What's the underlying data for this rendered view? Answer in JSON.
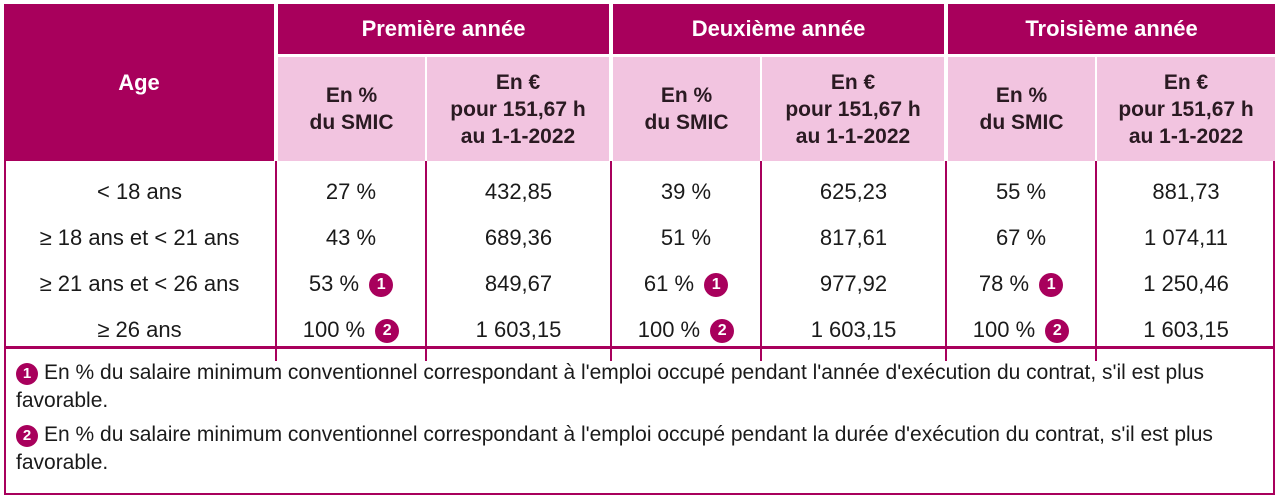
{
  "header": {
    "age": "Age",
    "years": [
      "Première année",
      "Deuxième année",
      "Troisième année"
    ],
    "col_pct": [
      "En %",
      "du SMIC"
    ],
    "col_eur": [
      "En €",
      "pour 151,67 h",
      "au 1-1-2022"
    ]
  },
  "rows": [
    {
      "age": "< 18 ans",
      "p1": "27 %",
      "e1": "432,85",
      "p2": "39 %",
      "e2": "625,23",
      "p3": "55 %",
      "e3": "881,73",
      "badge": ""
    },
    {
      "age": "≥  18 ans et < 21 ans",
      "p1": "43 %",
      "e1": "689,36",
      "p2": "51 %",
      "e2": "817,61",
      "p3": "67 %",
      "e3": "1 074,11",
      "badge": ""
    },
    {
      "age": "≥  21 ans et < 26 ans",
      "p1": "53 %",
      "e1": "849,67",
      "p2": "61 %",
      "e2": "977,92",
      "p3": "78 %",
      "e3": "1 250,46",
      "badge": "1"
    },
    {
      "age": "≥  26 ans",
      "p1": "100 %",
      "e1": "1 603,15",
      "p2": "100 %",
      "e2": "1 603,15",
      "p3": "100 %",
      "e3": "1 603,15",
      "badge": "2"
    }
  ],
  "notes": [
    {
      "badge": "1",
      "text": "En % du salaire minimum conventionnel correspondant à l'emploi occupé pendant l'année d'exécution du contrat, s'il est plus favorable."
    },
    {
      "badge": "2",
      "text": "En % du salaire minimum conventionnel correspondant à l'emploi occupé pendant la durée d'exécution du contrat, s'il est plus favorable."
    }
  ],
  "colors": {
    "accent": "#a8005c",
    "header_light": "#f2c4e0"
  }
}
